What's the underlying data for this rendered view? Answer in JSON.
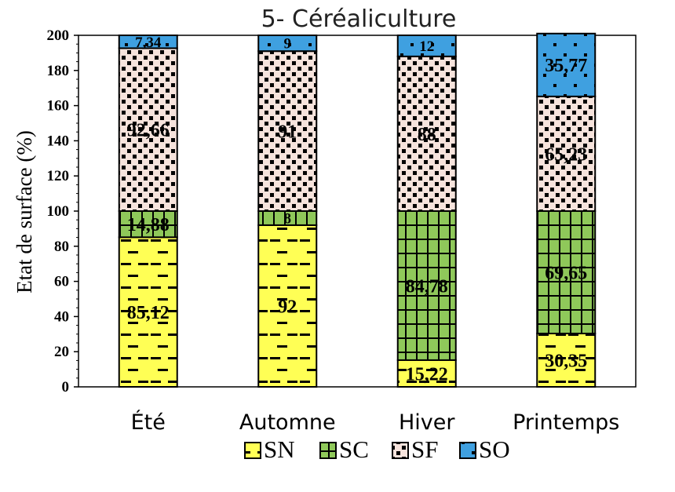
{
  "chart_data": {
    "type": "bar",
    "stacked": true,
    "title": "5- Céréaliculture",
    "xlabel": "",
    "ylabel": "Etat de surface (%)",
    "ylim": [
      0,
      200
    ],
    "yticks": [
      "0",
      "20",
      "40",
      "60",
      "80",
      "100",
      "120",
      "140",
      "160",
      "180",
      "200"
    ],
    "categories": [
      "Été",
      "Automne",
      "Hiver",
      "Printemps"
    ],
    "grid": false,
    "legend_position": "bottom",
    "series": [
      {
        "name": "SN",
        "color": "#ffff55",
        "pattern": "dashes",
        "values": [
          85.12,
          92,
          15.22,
          30.35
        ],
        "labels": [
          "85,12",
          "92",
          "15,22",
          "30,35"
        ]
      },
      {
        "name": "SC",
        "color": "#8fc85a",
        "pattern": "grid",
        "values": [
          14.88,
          8,
          84.78,
          69.65
        ],
        "labels": [
          "14,88",
          "8",
          "84,78",
          "69,65"
        ]
      },
      {
        "name": "SF",
        "color": "#f6e3dc",
        "pattern": "dots",
        "values": [
          92.66,
          91,
          88,
          65.23
        ],
        "labels": [
          "92,66",
          "91",
          "88",
          "65,23"
        ]
      },
      {
        "name": "SO",
        "color": "#3fa0e0",
        "pattern": "dots-sparse",
        "values": [
          7.34,
          9,
          12,
          35.77
        ],
        "labels": [
          "7,34",
          "9",
          "12",
          "35,77"
        ]
      }
    ]
  }
}
